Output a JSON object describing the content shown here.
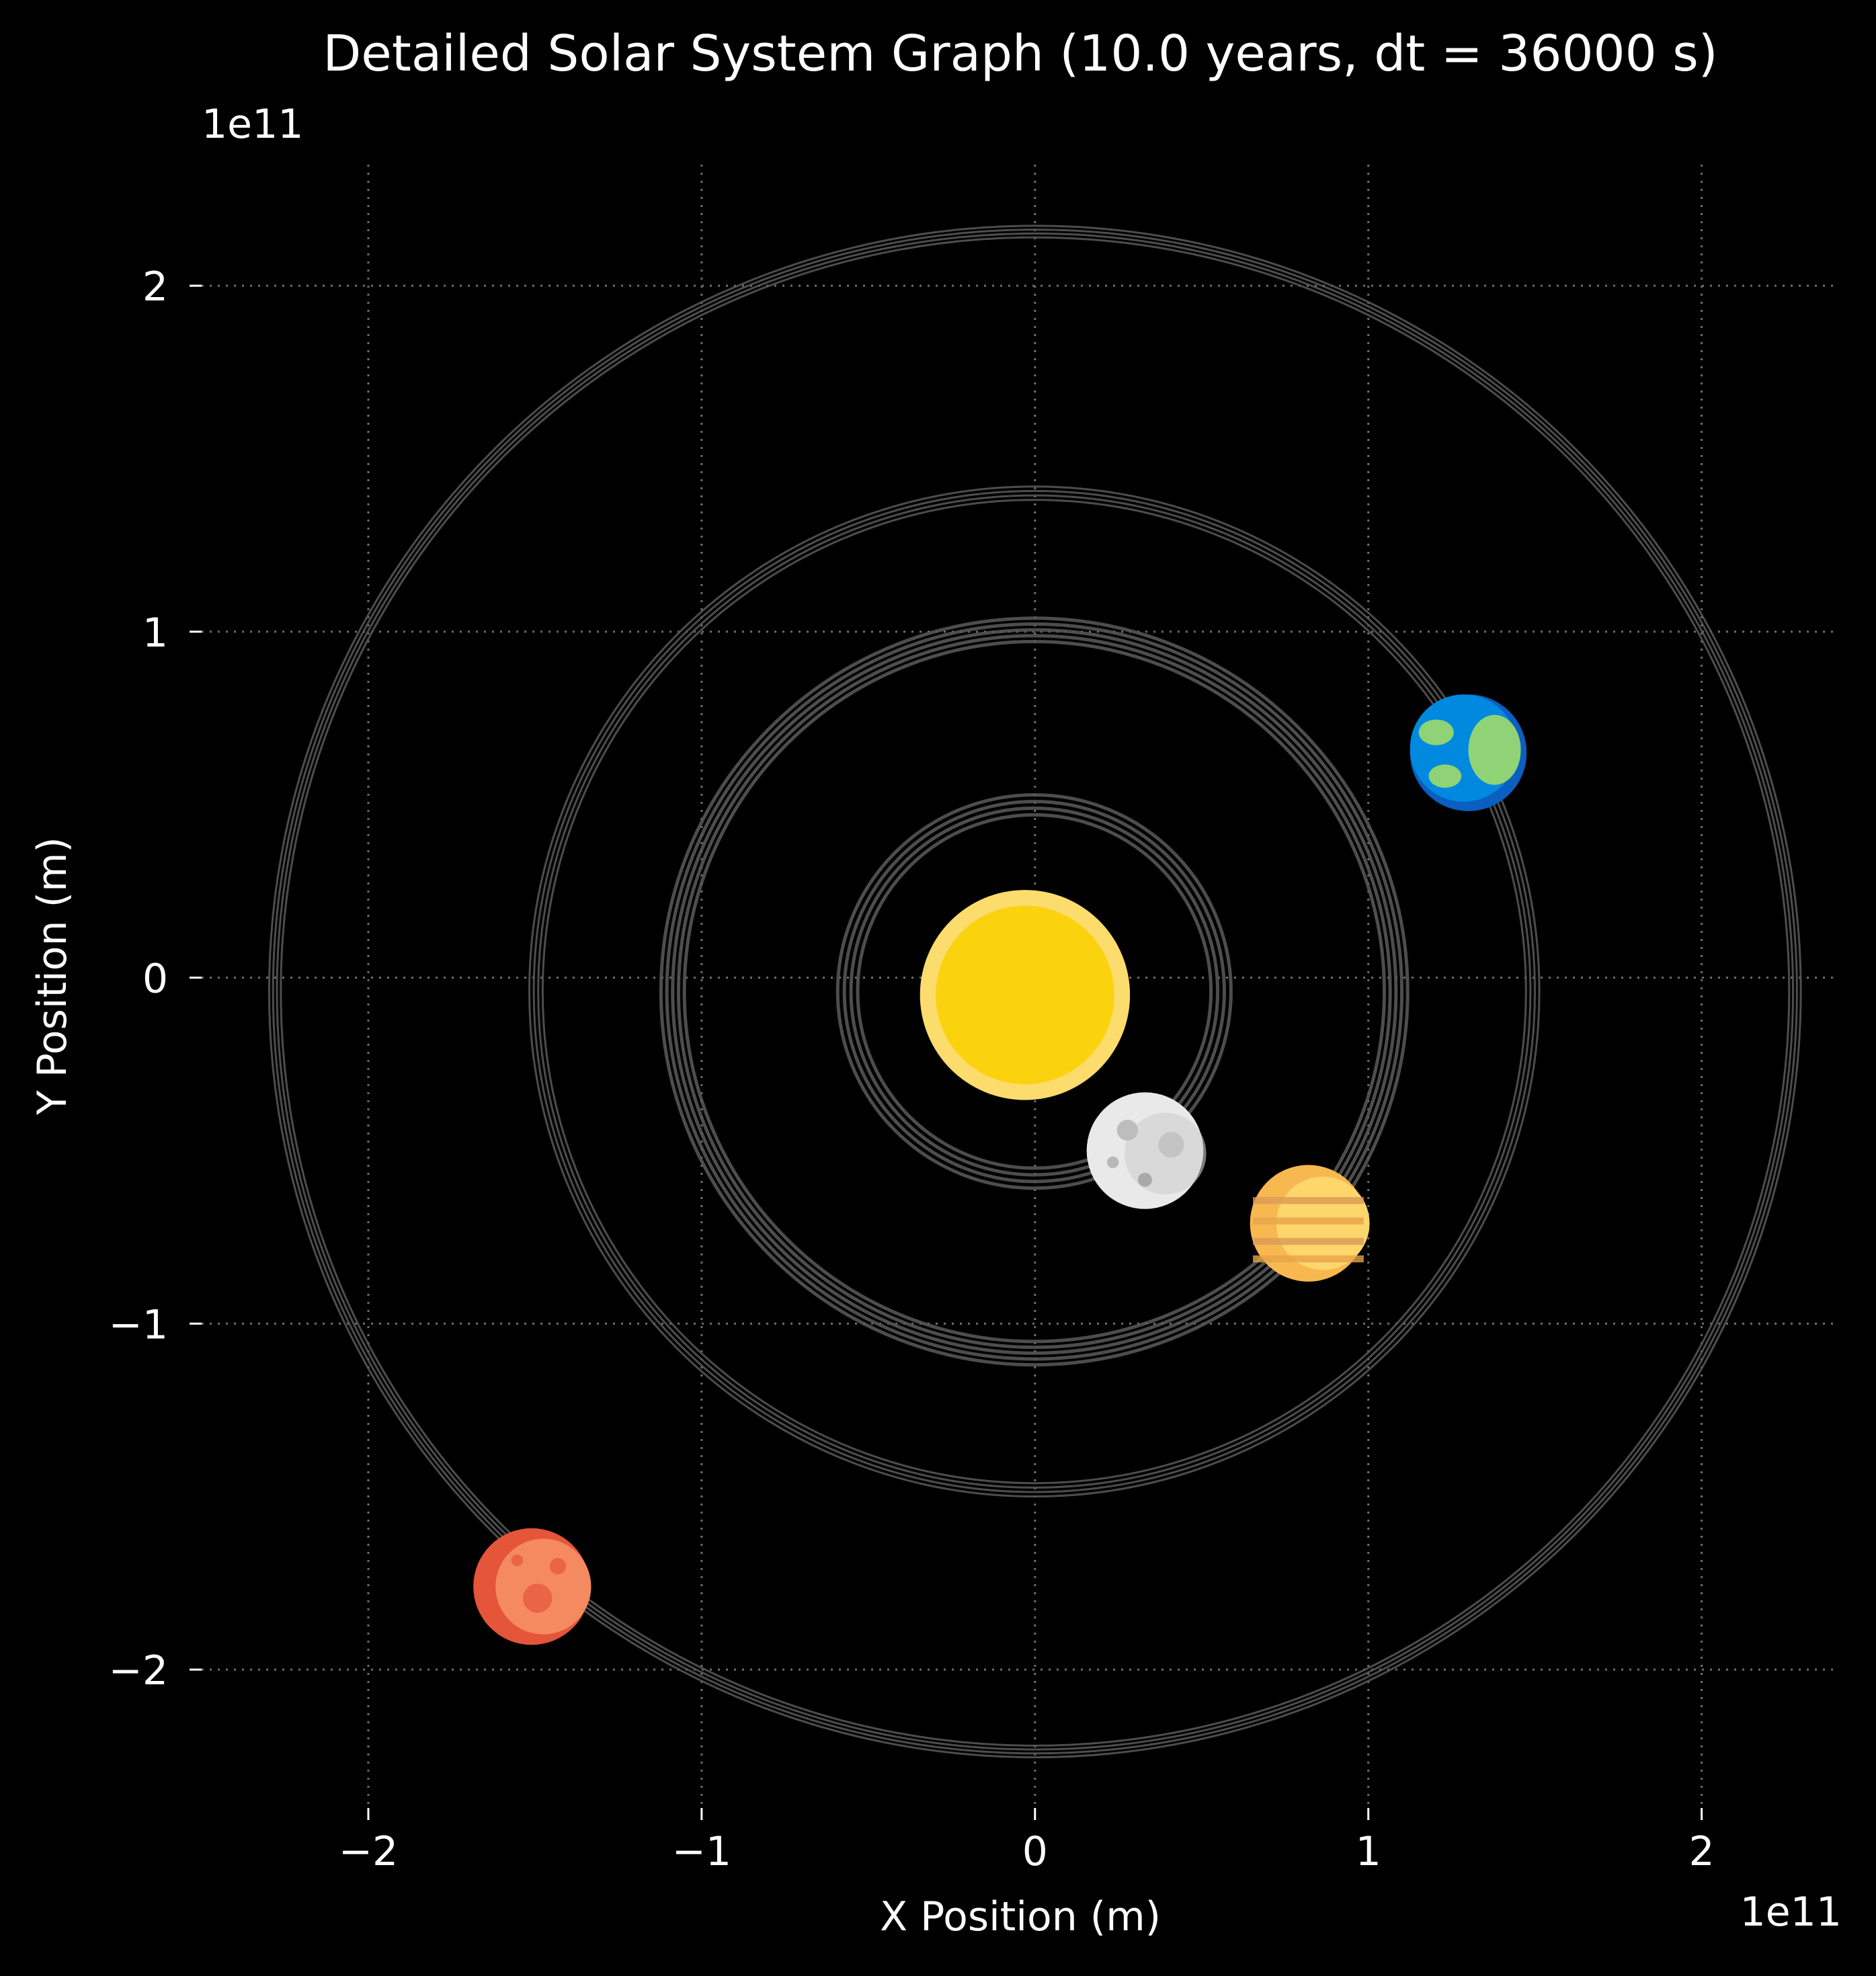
{
  "chart_data": {
    "type": "scatter",
    "title": "Detailed Solar System Graph (10.0 years, dt = 36000 s)",
    "xlabel": "X Position (m)",
    "ylabel": "Y Position (m)",
    "x_offset_label": "1e11",
    "y_offset_label": "1e11",
    "xlim": [
      -250000000000.0,
      240000000000.0
    ],
    "ylim": [
      -240000000000.0,
      235000000000.0
    ],
    "x_ticks": [
      -200000000000.0,
      -100000000000.0,
      0,
      100000000000.0,
      200000000000.0
    ],
    "y_ticks": [
      -200000000000.0,
      -100000000000.0,
      0,
      100000000000.0,
      200000000000.0
    ],
    "x_tick_labels": [
      "−2",
      "−1",
      "0",
      "1",
      "2"
    ],
    "y_tick_labels": [
      "−2",
      "−1",
      "0",
      "1",
      "2"
    ],
    "grid": true,
    "grid_style": "dotted",
    "background": "#000000",
    "orbit_color": "#5a5a5a",
    "orbits": [
      {
        "center": [
          -200000000.0,
          -4000000000.0
        ],
        "radius": 56000000000.0,
        "band": 6000000000.0,
        "loops": 4
      },
      {
        "center": [
          -200000000.0,
          -4000000000.0
        ],
        "radius": 108500000000.0,
        "band": 7000000000.0,
        "loops": 5
      },
      {
        "center": [
          -200000000.0,
          -4000000000.0
        ],
        "radius": 149500000000.0,
        "band": 4000000000.0,
        "loops": 4
      },
      {
        "center": [
          0.0,
          -4000000000.0
        ],
        "radius": 228000000000.0,
        "band": 3500000000.0,
        "loops": 4
      }
    ],
    "bodies": [
      {
        "icon": "sun-icon",
        "x": -3000000000.0,
        "y": -5000000000.0,
        "radius": 31500000000.0,
        "colors": [
          "#fcdc6c",
          "#fbd20e"
        ]
      },
      {
        "icon": "moon-icon",
        "x": 33000000000.0,
        "y": -50000000000.0,
        "radius": 17500000000.0,
        "colors": [
          "#e9e9e9",
          "#cfcfcf"
        ]
      },
      {
        "icon": "venus-icon",
        "x": 82000000000.0,
        "y": -71000000000.0,
        "radius": 17500000000.0,
        "colors": [
          "#fdd66c",
          "#f7b850"
        ]
      },
      {
        "icon": "earth-icon",
        "x": 130000000000.0,
        "y": 65000000000.0,
        "radius": 17500000000.0,
        "colors": [
          "#0089df",
          "#8fd376"
        ]
      },
      {
        "icon": "mars-icon",
        "x": -151000000000.0,
        "y": -176000000000.0,
        "radius": 17500000000.0,
        "colors": [
          "#e4553a",
          "#f5895f"
        ]
      }
    ]
  }
}
